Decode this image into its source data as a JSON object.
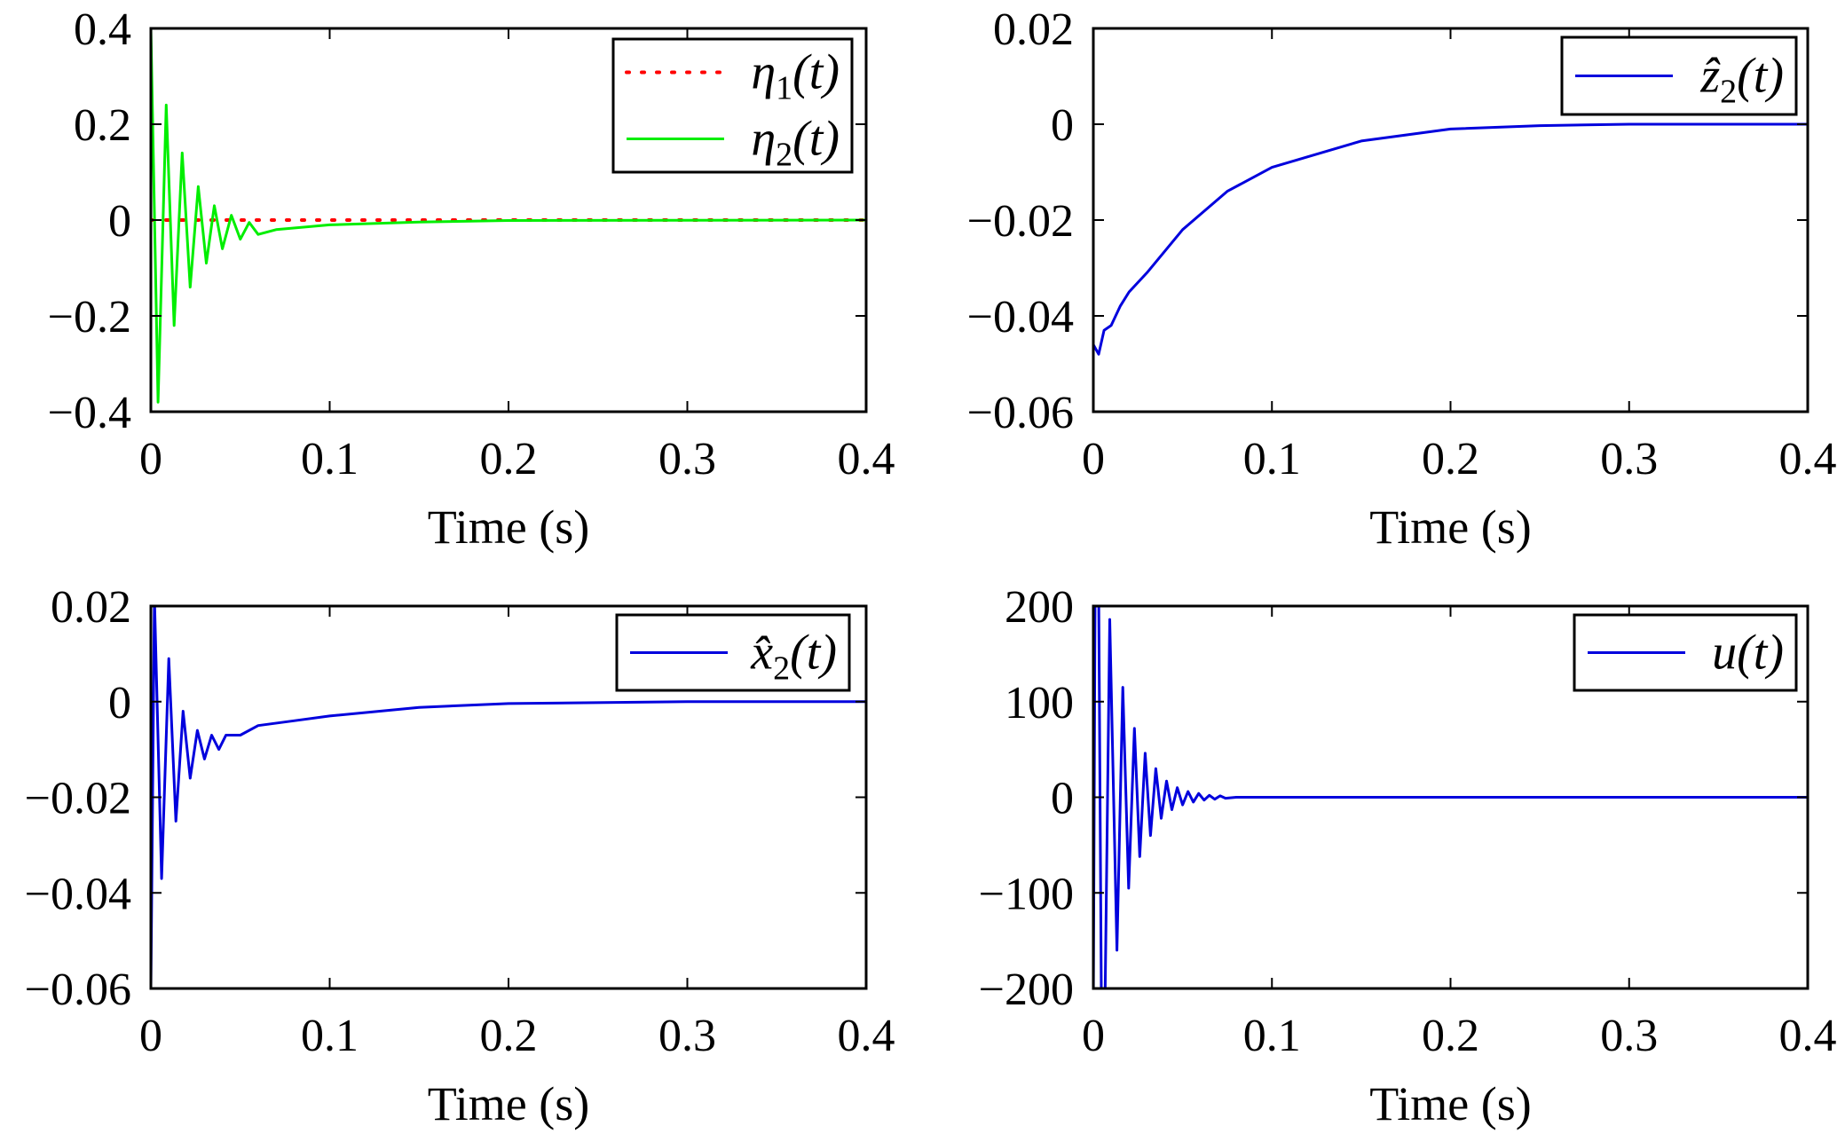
{
  "chart_data": [
    {
      "type": "line",
      "xlabel": "Time (s)",
      "ylabel": "",
      "xlim": [
        0,
        0.4
      ],
      "ylim": [
        -0.4,
        0.4
      ],
      "xticks": [
        "0",
        "0.1",
        "0.2",
        "0.3",
        "0.4"
      ],
      "xtick_values": [
        0,
        0.1,
        0.2,
        0.3,
        0.4
      ],
      "yticks": [
        "0.4",
        "0.2",
        "0",
        "−0.2",
        "−0.4"
      ],
      "ytick_values": [
        0.4,
        0.2,
        0,
        -0.2,
        -0.4
      ],
      "grid": false,
      "legend_placement": "top-right",
      "series": [
        {
          "name": "η₁(t)",
          "label": {
            "base": "η",
            "sub": "1",
            "rest": "(t)"
          },
          "color": "#ff0000",
          "style": "dotted",
          "x": [
            0,
            0.4
          ],
          "y": [
            0,
            0
          ]
        },
        {
          "name": "η₂(t)",
          "label": {
            "base": "η",
            "sub": "2",
            "rest": "(t)"
          },
          "color": "#00ee00",
          "style": "solid",
          "x": [
            0,
            0.004,
            0.0086,
            0.013,
            0.0175,
            0.022,
            0.0265,
            0.031,
            0.0355,
            0.04,
            0.045,
            0.05,
            0.055,
            0.06,
            0.07,
            0.1,
            0.15,
            0.2,
            0.4
          ],
          "y": [
            0.4,
            -0.38,
            0.24,
            -0.22,
            0.14,
            -0.14,
            0.07,
            -0.09,
            0.03,
            -0.06,
            0.01,
            -0.04,
            -0.005,
            -0.03,
            -0.02,
            -0.01,
            -0.004,
            -0.001,
            0
          ]
        }
      ]
    },
    {
      "type": "line",
      "xlabel": "Time (s)",
      "ylabel": "",
      "xlim": [
        0,
        0.4
      ],
      "ylim": [
        -0.06,
        0.02
      ],
      "xticks": [
        "0",
        "0.1",
        "0.2",
        "0.3",
        "0.4"
      ],
      "xtick_values": [
        0,
        0.1,
        0.2,
        0.3,
        0.4
      ],
      "yticks": [
        "0.02",
        "0",
        "−0.02",
        "−0.04",
        "−0.06"
      ],
      "ytick_values": [
        0.02,
        0,
        -0.02,
        -0.04,
        -0.06
      ],
      "grid": false,
      "legend_placement": "top-right",
      "series": [
        {
          "name": "ẑ₂(t)",
          "label": {
            "base": "ẑ",
            "sub": "2",
            "rest": "(t)"
          },
          "color": "#0000dd",
          "style": "solid",
          "x": [
            0,
            0.003,
            0.006,
            0.01,
            0.015,
            0.02,
            0.03,
            0.05,
            0.075,
            0.1,
            0.15,
            0.2,
            0.25,
            0.3,
            0.4
          ],
          "y": [
            -0.046,
            -0.048,
            -0.043,
            -0.042,
            -0.038,
            -0.035,
            -0.031,
            -0.022,
            -0.014,
            -0.009,
            -0.0035,
            -0.001,
            -0.0003,
            0,
            0
          ]
        }
      ]
    },
    {
      "type": "line",
      "xlabel": "Time (s)",
      "ylabel": "",
      "xlim": [
        0,
        0.4
      ],
      "ylim": [
        -0.06,
        0.02
      ],
      "xticks": [
        "0",
        "0.1",
        "0.2",
        "0.3",
        "0.4"
      ],
      "xtick_values": [
        0,
        0.1,
        0.2,
        0.3,
        0.4
      ],
      "yticks": [
        "0.02",
        "0",
        "−0.02",
        "−0.04",
        "−0.06"
      ],
      "ytick_values": [
        0.02,
        0,
        -0.02,
        -0.04,
        -0.06
      ],
      "grid": false,
      "legend_placement": "top-right",
      "series": [
        {
          "name": "x̂₂(t)",
          "label": {
            "base": "x̂",
            "sub": "2",
            "rest": "(t)"
          },
          "color": "#0000dd",
          "style": "solid",
          "x": [
            0,
            0.002,
            0.006,
            0.01,
            0.014,
            0.018,
            0.022,
            0.026,
            0.03,
            0.034,
            0.038,
            0.042,
            0.05,
            0.06,
            0.08,
            0.1,
            0.15,
            0.2,
            0.3,
            0.4
          ],
          "y": [
            -0.06,
            0.022,
            -0.037,
            0.009,
            -0.025,
            -0.002,
            -0.016,
            -0.006,
            -0.012,
            -0.007,
            -0.01,
            -0.007,
            -0.007,
            -0.005,
            -0.004,
            -0.003,
            -0.0012,
            -0.0004,
            0,
            0
          ]
        }
      ]
    },
    {
      "type": "line",
      "xlabel": "Time (s)",
      "ylabel": "",
      "xlim": [
        0,
        0.4
      ],
      "ylim": [
        -200,
        200
      ],
      "xticks": [
        "0",
        "0.1",
        "0.2",
        "0.3",
        "0.4"
      ],
      "xtick_values": [
        0,
        0.1,
        0.2,
        0.3,
        0.4
      ],
      "yticks": [
        "200",
        "100",
        "0",
        "−100",
        "−200"
      ],
      "ytick_values": [
        200,
        100,
        0,
        -100,
        -200
      ],
      "grid": false,
      "legend_placement": "top-right",
      "series": [
        {
          "name": "u(t)",
          "label": {
            "base": "u",
            "sub": "",
            "rest": "(t)"
          },
          "color": "#0000dd",
          "style": "solid",
          "x": [
            0,
            0.001,
            0.003,
            0.0045,
            0.0065,
            0.0092,
            0.0132,
            0.0165,
            0.0198,
            0.023,
            0.026,
            0.029,
            0.032,
            0.035,
            0.038,
            0.041,
            0.044,
            0.047,
            0.05,
            0.053,
            0.056,
            0.059,
            0.062,
            0.065,
            0.068,
            0.071,
            0.074,
            0.08,
            0.4
          ],
          "y": [
            -220,
            220,
            220,
            -220,
            -220,
            186,
            -160,
            115,
            -95,
            72,
            -62,
            46,
            -40,
            30,
            -22,
            17,
            -13,
            10,
            -8,
            6,
            -5,
            4,
            -3,
            2,
            -2,
            1.5,
            -1,
            0,
            0
          ]
        }
      ]
    }
  ]
}
